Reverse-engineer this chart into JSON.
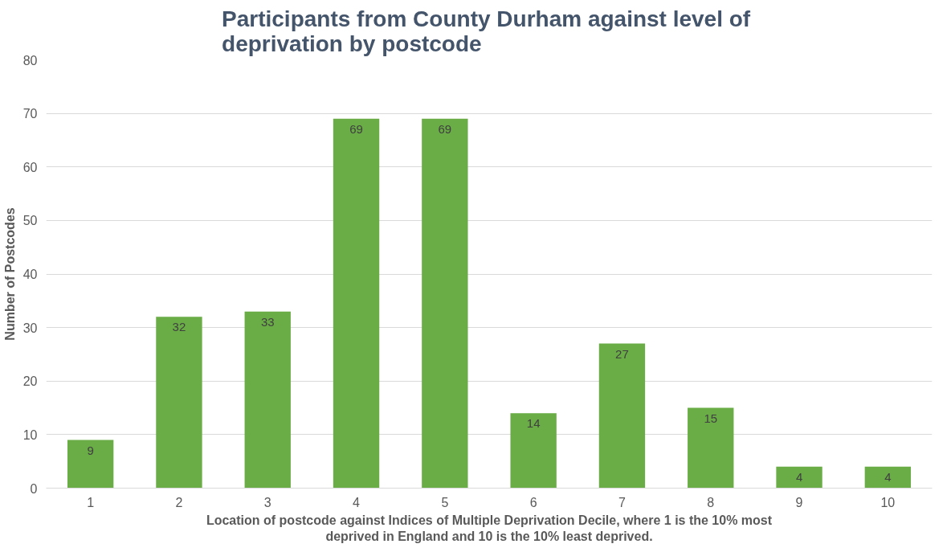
{
  "chart_data": {
    "type": "bar",
    "title": "Participants  from County Durham against level of deprivation by postcode",
    "xlabel": "Location of postcode against Indices of Multiple Deprivation Decile, where 1 is the 10% most deprived in England and 10 is the 10% least deprived.",
    "ylabel": "Number of Postcodes",
    "categories": [
      "1",
      "2",
      "3",
      "4",
      "5",
      "6",
      "7",
      "8",
      "9",
      "10"
    ],
    "values": [
      9,
      32,
      33,
      69,
      69,
      14,
      27,
      15,
      4,
      4
    ],
    "color": "#6aad46",
    "ylim": [
      0,
      80
    ],
    "yticks": [
      0,
      10,
      20,
      30,
      40,
      50,
      60,
      70,
      80
    ],
    "grid": "y",
    "data_labels": true
  }
}
